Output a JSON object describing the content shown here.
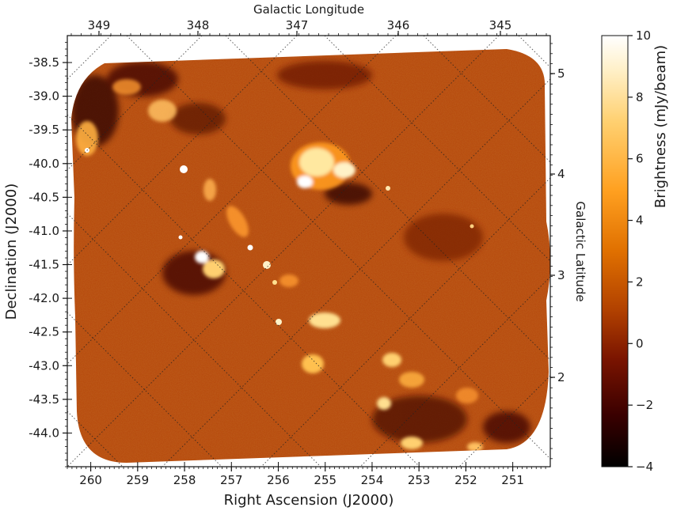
{
  "chart_data": {
    "type": "heatmap",
    "top_axis_label": "Galactic Longitude",
    "top_ticks": [
      "349",
      "348",
      "347",
      "346",
      "345"
    ],
    "right_axis_label": "Galactic Latitude",
    "right_ticks": [
      "5",
      "4",
      "3",
      "2"
    ],
    "xlabel": "Right Ascension (J2000)",
    "x_ticks": [
      260,
      259,
      258,
      257,
      256,
      255,
      254,
      253,
      252,
      251
    ],
    "xlim": [
      260.5,
      250.2
    ],
    "ylabel": "Declination (J2000)",
    "y_ticks": [
      -38.5,
      -39.0,
      -39.5,
      -40.0,
      -40.5,
      -41.0,
      -41.5,
      -42.0,
      -42.5,
      -43.0,
      -43.5,
      -44.0
    ],
    "ylim": [
      -44.5,
      -38.1
    ],
    "colorbar": {
      "label": "Brightness (mJy/beam)",
      "range": [
        -4,
        10
      ],
      "ticks": [
        10,
        8,
        6,
        4,
        2,
        0,
        -2,
        -4
      ],
      "colormap": "afmhot",
      "colors": [
        "#000000",
        "#5a0000",
        "#a02800",
        "#d05a00",
        "#f09020",
        "#ffc860",
        "#fff0c0",
        "#ffffff"
      ]
    },
    "grid": "galactic coordinate grid, dotted",
    "map_background_color": "#b84d10"
  }
}
